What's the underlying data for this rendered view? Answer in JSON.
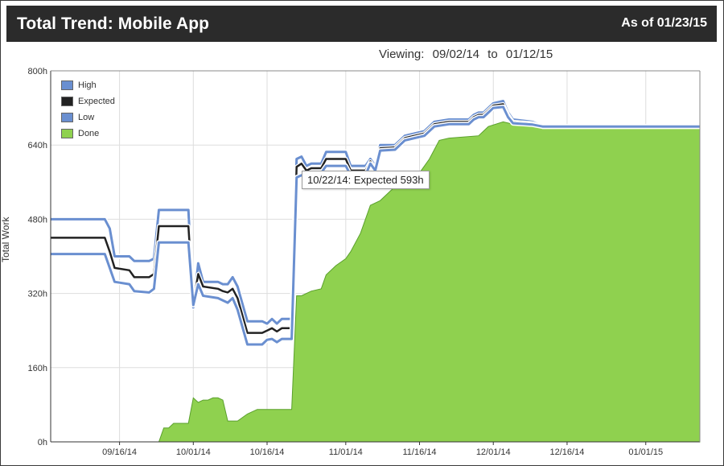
{
  "header": {
    "title": "Total Trend:  Mobile App",
    "as_of": "As of 01/23/15"
  },
  "viewing": {
    "label": "Viewing:",
    "from": "09/02/14",
    "to_word": "to",
    "to": "01/12/15"
  },
  "tooltip": {
    "text": "10/22/14: Expected 593h"
  },
  "colors": {
    "high": "#6a8fd0",
    "expected": "#222222",
    "low": "#6a8fd0",
    "done": "#8fd14f",
    "done_edge": "#5aa02c",
    "grid": "#dddddd",
    "axis": "#333333"
  },
  "chart_data": {
    "type": "area",
    "title": "Total Trend:  Mobile App",
    "xlabel": "",
    "ylabel": "Total Work",
    "x_range": [
      "09/02/14",
      "01/12/15"
    ],
    "ylim": [
      0,
      800
    ],
    "y_ticks": [
      "0h",
      "160h",
      "320h",
      "480h",
      "640h",
      "800h"
    ],
    "x_ticks": [
      "09/16/14",
      "10/01/14",
      "10/16/14",
      "11/01/14",
      "11/16/14",
      "12/01/14",
      "12/16/14",
      "01/01/15"
    ],
    "grid": true,
    "legend_position": "top-left",
    "series": [
      {
        "name": "High",
        "points": [
          [
            "09/02/14",
            480
          ],
          [
            "09/13/14",
            480
          ],
          [
            "09/14/14",
            460
          ],
          [
            "09/15/14",
            400
          ],
          [
            "09/18/14",
            400
          ],
          [
            "09/19/14",
            390
          ],
          [
            "09/22/14",
            390
          ],
          [
            "09/23/14",
            395
          ],
          [
            "09/24/14",
            500
          ],
          [
            "09/30/14",
            500
          ],
          [
            "10/01/14",
            290
          ],
          [
            "10/02/14",
            385
          ],
          [
            "10/03/14",
            345
          ],
          [
            "10/06/14",
            345
          ],
          [
            "10/07/14",
            340
          ],
          [
            "10/08/14",
            340
          ],
          [
            "10/09/14",
            355
          ],
          [
            "10/10/14",
            335
          ],
          [
            "10/12/14",
            260
          ],
          [
            "10/15/14",
            260
          ],
          [
            "10/16/14",
            255
          ],
          [
            "10/17/14",
            265
          ],
          [
            "10/18/14",
            255
          ],
          [
            "10/19/14",
            265
          ],
          [
            "10/21/14",
            265
          ],
          [
            "10/22/14",
            610
          ],
          [
            "10/23/14",
            615
          ],
          [
            "10/24/14",
            595
          ],
          [
            "10/25/14",
            600
          ],
          [
            "10/27/14",
            600
          ],
          [
            "10/28/14",
            625
          ],
          [
            "11/01/14",
            625
          ],
          [
            "11/02/14",
            595
          ],
          [
            "11/05/14",
            595
          ],
          [
            "11/06/14",
            610
          ],
          [
            "11/07/14",
            595
          ],
          [
            "11/08/14",
            640
          ],
          [
            "11/11/14",
            640
          ],
          [
            "11/13/14",
            660
          ],
          [
            "11/17/14",
            670
          ],
          [
            "11/19/14",
            690
          ],
          [
            "11/22/14",
            695
          ],
          [
            "11/26/14",
            695
          ],
          [
            "11/27/14",
            705
          ],
          [
            "11/28/14",
            710
          ],
          [
            "11/29/14",
            710
          ],
          [
            "11/30/14",
            720
          ],
          [
            "12/01/14",
            730
          ],
          [
            "12/03/14",
            735
          ],
          [
            "12/04/14",
            710
          ],
          [
            "12/05/14",
            695
          ],
          [
            "12/09/14",
            690
          ],
          [
            "12/11/14",
            680
          ],
          [
            "01/12/15",
            680
          ]
        ]
      },
      {
        "name": "Expected",
        "points": [
          [
            "09/02/14",
            440
          ],
          [
            "09/13/14",
            440
          ],
          [
            "09/14/14",
            410
          ],
          [
            "09/15/14",
            375
          ],
          [
            "09/18/14",
            370
          ],
          [
            "09/19/14",
            355
          ],
          [
            "09/22/14",
            355
          ],
          [
            "09/23/14",
            362
          ],
          [
            "09/24/14",
            465
          ],
          [
            "09/30/14",
            465
          ],
          [
            "10/01/14",
            300
          ],
          [
            "10/02/14",
            362
          ],
          [
            "10/03/14",
            335
          ],
          [
            "10/06/14",
            330
          ],
          [
            "10/07/14",
            325
          ],
          [
            "10/08/14",
            322
          ],
          [
            "10/09/14",
            330
          ],
          [
            "10/10/14",
            310
          ],
          [
            "10/12/14",
            235
          ],
          [
            "10/15/14",
            235
          ],
          [
            "10/16/14",
            240
          ],
          [
            "10/17/14",
            245
          ],
          [
            "10/18/14",
            238
          ],
          [
            "10/19/14",
            245
          ],
          [
            "10/21/14",
            245
          ],
          [
            "10/22/14",
            593
          ],
          [
            "10/23/14",
            600
          ],
          [
            "10/24/14",
            585
          ],
          [
            "10/25/14",
            590
          ],
          [
            "10/27/14",
            590
          ],
          [
            "10/28/14",
            610
          ],
          [
            "11/01/14",
            610
          ],
          [
            "11/02/14",
            585
          ],
          [
            "11/05/14",
            585
          ],
          [
            "11/06/14",
            605
          ],
          [
            "11/07/14",
            590
          ],
          [
            "11/08/14",
            633
          ],
          [
            "11/11/14",
            635
          ],
          [
            "11/13/14",
            655
          ],
          [
            "11/17/14",
            665
          ],
          [
            "11/19/14",
            685
          ],
          [
            "11/22/14",
            690
          ],
          [
            "11/26/14",
            690
          ],
          [
            "11/27/14",
            700
          ],
          [
            "11/28/14",
            705
          ],
          [
            "11/29/14",
            705
          ],
          [
            "11/30/14",
            715
          ],
          [
            "12/01/14",
            725
          ],
          [
            "12/03/14",
            728
          ],
          [
            "12/04/14",
            705
          ],
          [
            "12/05/14",
            690
          ],
          [
            "12/09/14",
            687
          ],
          [
            "12/11/14",
            680
          ],
          [
            "01/12/15",
            680
          ]
        ]
      },
      {
        "name": "Low",
        "points": [
          [
            "09/02/14",
            405
          ],
          [
            "09/13/14",
            405
          ],
          [
            "09/14/14",
            375
          ],
          [
            "09/15/14",
            345
          ],
          [
            "09/18/14",
            340
          ],
          [
            "09/19/14",
            325
          ],
          [
            "09/22/14",
            322
          ],
          [
            "09/23/14",
            330
          ],
          [
            "09/24/14",
            430
          ],
          [
            "09/30/14",
            430
          ],
          [
            "10/01/14",
            295
          ],
          [
            "10/02/14",
            340
          ],
          [
            "10/03/14",
            315
          ],
          [
            "10/06/14",
            310
          ],
          [
            "10/07/14",
            305
          ],
          [
            "10/08/14",
            300
          ],
          [
            "10/09/14",
            310
          ],
          [
            "10/10/14",
            285
          ],
          [
            "10/12/14",
            210
          ],
          [
            "10/15/14",
            210
          ],
          [
            "10/16/14",
            220
          ],
          [
            "10/17/14",
            222
          ],
          [
            "10/18/14",
            215
          ],
          [
            "10/19/14",
            222
          ],
          [
            "10/21/14",
            222
          ],
          [
            "10/22/14",
            570
          ],
          [
            "10/23/14",
            575
          ],
          [
            "10/24/14",
            575
          ],
          [
            "10/25/14",
            580
          ],
          [
            "10/27/14",
            580
          ],
          [
            "10/28/14",
            595
          ],
          [
            "11/01/14",
            595
          ],
          [
            "11/02/14",
            575
          ],
          [
            "11/05/14",
            575
          ],
          [
            "11/06/14",
            600
          ],
          [
            "11/07/14",
            585
          ],
          [
            "11/08/14",
            628
          ],
          [
            "11/11/14",
            630
          ],
          [
            "11/13/14",
            650
          ],
          [
            "11/17/14",
            660
          ],
          [
            "11/19/14",
            680
          ],
          [
            "11/22/14",
            685
          ],
          [
            "11/26/14",
            685
          ],
          [
            "11/27/14",
            695
          ],
          [
            "11/28/14",
            700
          ],
          [
            "11/29/14",
            700
          ],
          [
            "11/30/14",
            710
          ],
          [
            "12/01/14",
            720
          ],
          [
            "12/03/14",
            722
          ],
          [
            "12/04/14",
            700
          ],
          [
            "12/05/14",
            687
          ],
          [
            "12/09/14",
            684
          ],
          [
            "12/11/14",
            680
          ],
          [
            "01/12/15",
            680
          ]
        ]
      },
      {
        "name": "Done",
        "points": [
          [
            "09/02/14",
            0
          ],
          [
            "09/24/14",
            0
          ],
          [
            "09/25/14",
            30
          ],
          [
            "09/26/14",
            30
          ],
          [
            "09/27/14",
            40
          ],
          [
            "09/30/14",
            40
          ],
          [
            "10/01/14",
            95
          ],
          [
            "10/02/14",
            85
          ],
          [
            "10/03/14",
            90
          ],
          [
            "10/04/14",
            90
          ],
          [
            "10/05/14",
            95
          ],
          [
            "10/06/14",
            95
          ],
          [
            "10/07/14",
            90
          ],
          [
            "10/08/14",
            45
          ],
          [
            "10/10/14",
            45
          ],
          [
            "10/12/14",
            60
          ],
          [
            "10/14/14",
            70
          ],
          [
            "10/18/14",
            70
          ],
          [
            "10/21/14",
            70
          ],
          [
            "10/22/14",
            315
          ],
          [
            "10/23/14",
            315
          ],
          [
            "10/25/14",
            325
          ],
          [
            "10/27/14",
            330
          ],
          [
            "10/28/14",
            360
          ],
          [
            "10/30/14",
            380
          ],
          [
            "11/01/14",
            395
          ],
          [
            "11/02/14",
            410
          ],
          [
            "11/04/14",
            450
          ],
          [
            "11/06/14",
            510
          ],
          [
            "11/08/14",
            520
          ],
          [
            "11/10/14",
            540
          ],
          [
            "11/12/14",
            560
          ],
          [
            "11/14/14",
            570
          ],
          [
            "11/16/14",
            580
          ],
          [
            "11/18/14",
            610
          ],
          [
            "11/20/14",
            650
          ],
          [
            "11/22/14",
            655
          ],
          [
            "11/28/14",
            660
          ],
          [
            "11/30/14",
            680
          ],
          [
            "12/03/14",
            690
          ],
          [
            "12/05/14",
            685
          ],
          [
            "12/11/14",
            680
          ],
          [
            "01/12/15",
            680
          ]
        ]
      }
    ]
  }
}
